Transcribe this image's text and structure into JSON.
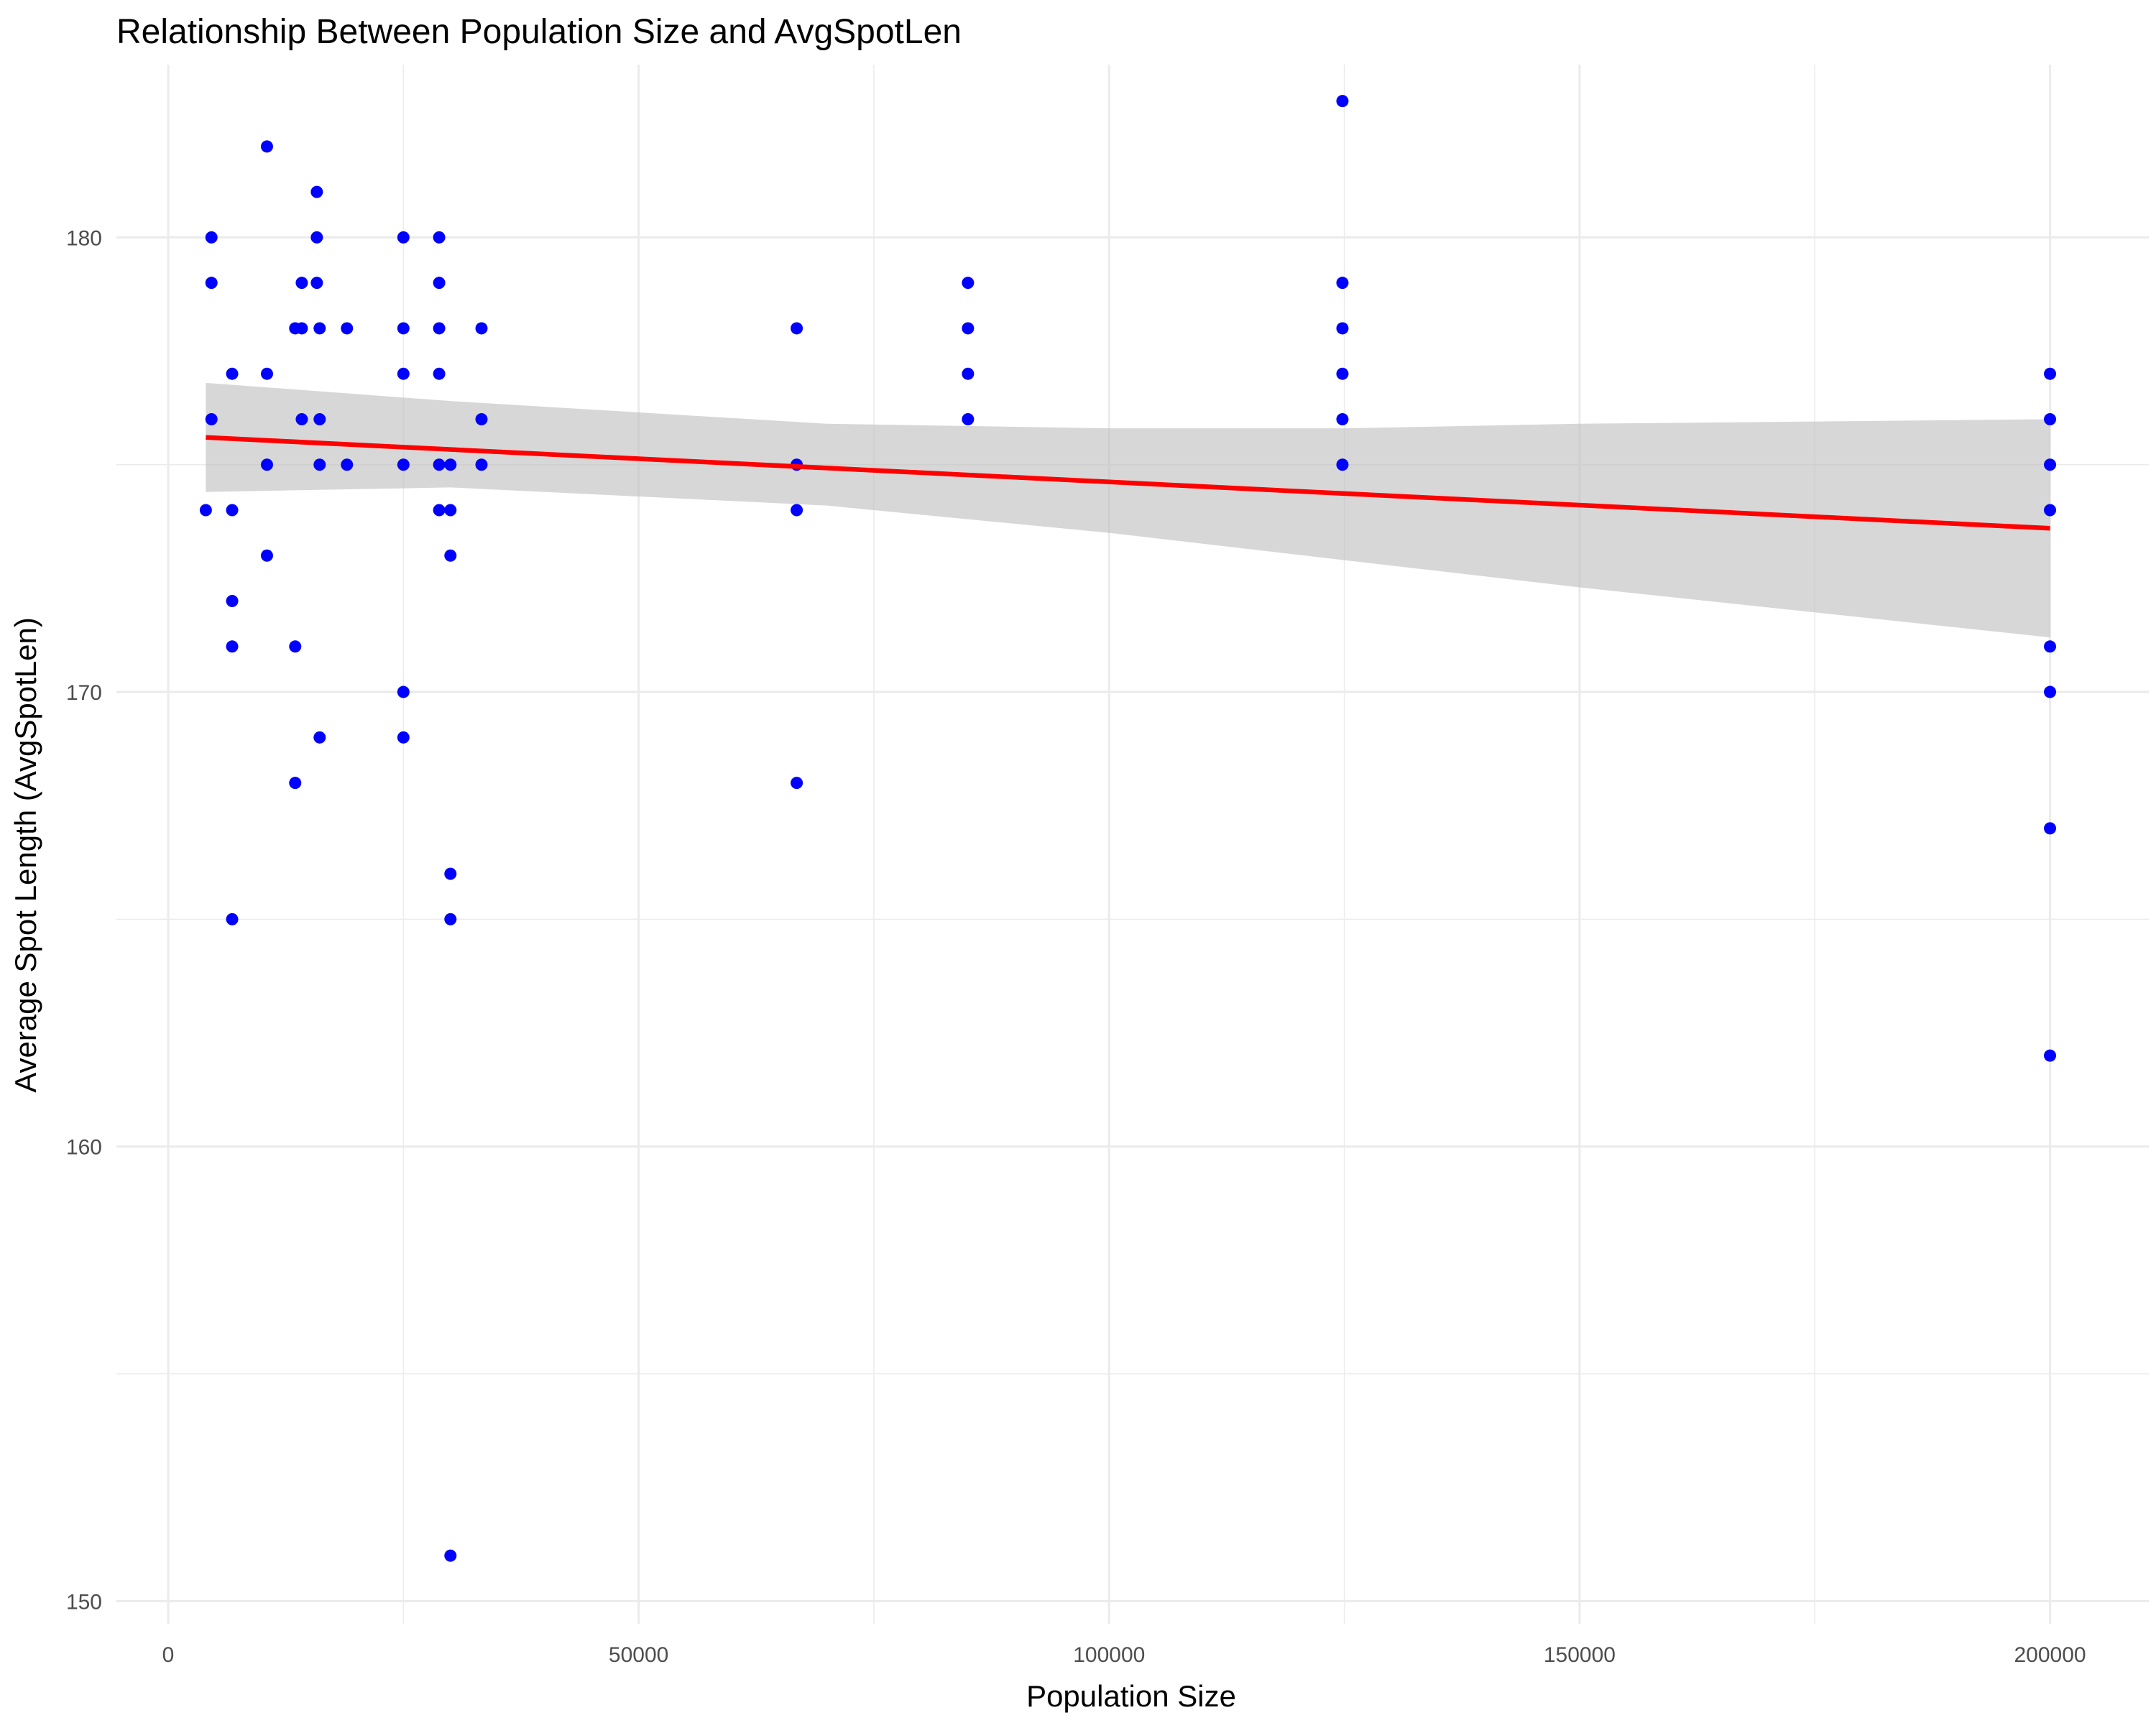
{
  "chart_data": {
    "type": "scatter",
    "title": "Relationship Between Population Size and AvgSpotLen",
    "xlabel": "Population Size",
    "ylabel": "Average Spot Length (AvgSpotLen)",
    "xlim": [
      -5500,
      210500
    ],
    "ylim": [
      149.5,
      183.8
    ],
    "x_ticks": [
      0,
      50000,
      100000,
      150000,
      200000
    ],
    "x_tick_labels": [
      "0",
      "50000",
      "100000",
      "150000",
      "200000"
    ],
    "y_ticks": [
      150,
      160,
      170,
      180
    ],
    "y_tick_labels": [
      "150",
      "160",
      "170",
      "180"
    ],
    "grid": true,
    "point_color": "#0000ff",
    "series": [
      {
        "values": [
          [
            4000,
            174
          ],
          [
            4600,
            180
          ],
          [
            4600,
            179
          ],
          [
            4600,
            176
          ],
          [
            6800,
            177
          ],
          [
            6800,
            174
          ],
          [
            6800,
            172
          ],
          [
            6800,
            171
          ],
          [
            6800,
            165
          ],
          [
            10500,
            182
          ],
          [
            10500,
            177
          ],
          [
            10500,
            175
          ],
          [
            10500,
            173
          ],
          [
            13500,
            178
          ],
          [
            13500,
            171
          ],
          [
            13500,
            168
          ],
          [
            14200,
            179
          ],
          [
            14200,
            178
          ],
          [
            14200,
            176
          ],
          [
            15800,
            181
          ],
          [
            15800,
            180
          ],
          [
            15800,
            179
          ],
          [
            16100,
            178
          ],
          [
            16100,
            176
          ],
          [
            16100,
            175
          ],
          [
            16100,
            169
          ],
          [
            19000,
            178
          ],
          [
            19000,
            175
          ],
          [
            25000,
            180
          ],
          [
            25000,
            178
          ],
          [
            25000,
            177
          ],
          [
            25000,
            175
          ],
          [
            25000,
            170
          ],
          [
            25000,
            169
          ],
          [
            28800,
            180
          ],
          [
            28800,
            179
          ],
          [
            28800,
            178
          ],
          [
            28800,
            177
          ],
          [
            28800,
            175
          ],
          [
            28800,
            174
          ],
          [
            30000,
            175
          ],
          [
            30000,
            174
          ],
          [
            30000,
            173
          ],
          [
            30000,
            166
          ],
          [
            30000,
            165
          ],
          [
            30000,
            151
          ],
          [
            33300,
            178
          ],
          [
            33300,
            176
          ],
          [
            33300,
            175
          ],
          [
            66800,
            178
          ],
          [
            66800,
            175
          ],
          [
            66800,
            174
          ],
          [
            66800,
            168
          ],
          [
            85000,
            179
          ],
          [
            85000,
            178
          ],
          [
            85000,
            177
          ],
          [
            85000,
            176
          ],
          [
            124800,
            183
          ],
          [
            124800,
            179
          ],
          [
            124800,
            178
          ],
          [
            124800,
            177
          ],
          [
            124800,
            176
          ],
          [
            124800,
            175
          ],
          [
            200000,
            177
          ],
          [
            200000,
            176
          ],
          [
            200000,
            175
          ],
          [
            200000,
            174
          ],
          [
            200000,
            171
          ],
          [
            200000,
            170
          ],
          [
            200000,
            167
          ],
          [
            200000,
            162
          ]
        ]
      }
    ],
    "trend_line": {
      "color": "#ff0000",
      "x": [
        4000,
        200000
      ],
      "y": [
        175.6,
        173.6
      ]
    },
    "confidence_band": {
      "color": "#bebebe",
      "x": [
        4000,
        30000,
        70000,
        100000,
        125000,
        150000,
        200000
      ],
      "upper": [
        176.8,
        176.4,
        175.9,
        175.8,
        175.8,
        175.9,
        176.0
      ],
      "lower": [
        174.4,
        174.5,
        174.1,
        173.5,
        172.9,
        172.3,
        171.2
      ]
    }
  }
}
